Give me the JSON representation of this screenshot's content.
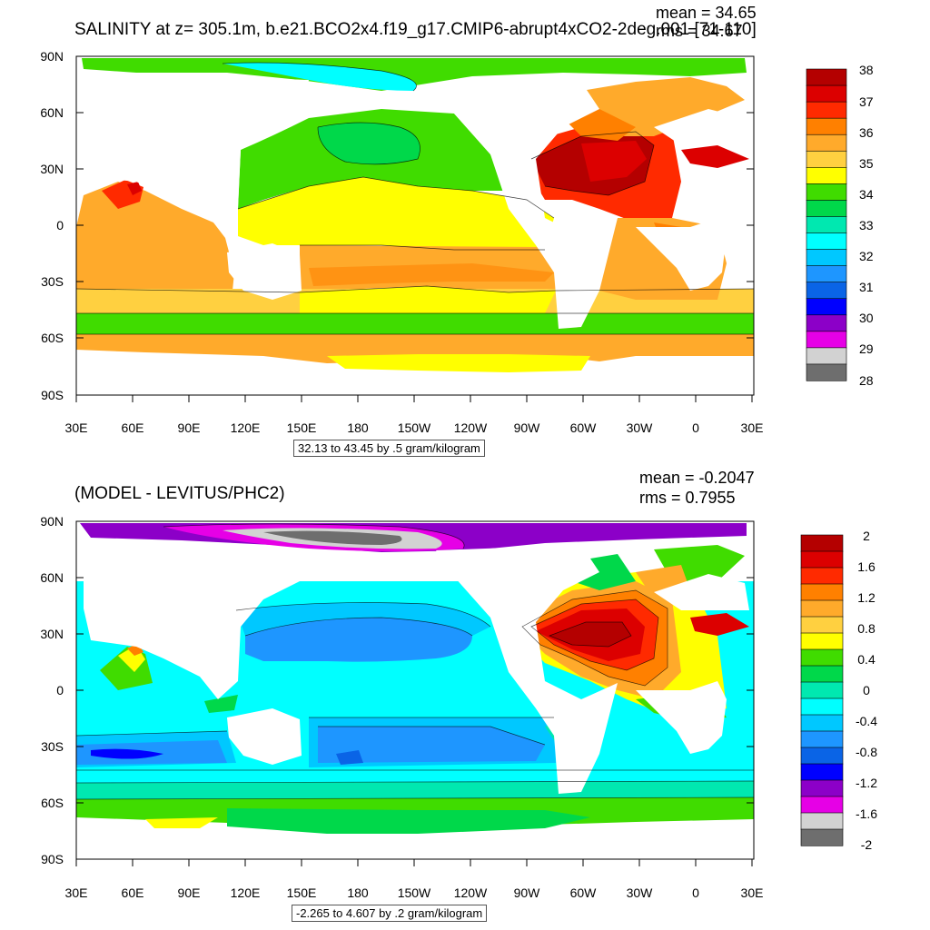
{
  "panel_top": {
    "title": "SALINITY at z= 305.1m, b.e21.BCO2x4.f19_g17.CMIP6-abrupt4xCO2-2deg.001 [71-110]",
    "mean_label": "mean = 34.65",
    "rms_label": "rms = 34.67",
    "info": "32.13 to 43.45 by .5 gram/kilogram",
    "colorbar": {
      "labels": [
        "38",
        "37",
        "36",
        "35",
        "34",
        "33",
        "32",
        "31",
        "30",
        "29",
        "28"
      ],
      "colors": [
        "#b40000",
        "#dc0000",
        "#ff2a00",
        "#ff8000",
        "#ffaa2b",
        "#ffd040",
        "#ffff00",
        "#40dc00",
        "#00d84a",
        "#00e8b0",
        "#00ffff",
        "#00c8ff",
        "#1e96ff",
        "#0a64e6",
        "#0000ff",
        "#8c00c8",
        "#e600e6",
        "#d2d2d2",
        "#6e6e6e"
      ]
    }
  },
  "panel_bottom": {
    "title": "(MODEL - LEVITUS/PHC2)",
    "mean_label": "mean = -0.2047",
    "rms_label": "rms = 0.7955",
    "info": "-2.265 to 4.607 by .2 gram/kilogram",
    "colorbar": {
      "labels": [
        "2",
        "1.6",
        "1.2",
        "0.8",
        "0.4",
        "0",
        "-0.4",
        "-0.8",
        "-1.2",
        "-1.6",
        "-2"
      ],
      "colors": [
        "#b40000",
        "#dc0000",
        "#ff2a00",
        "#ff8000",
        "#ffaa2b",
        "#ffd040",
        "#ffff00",
        "#40dc00",
        "#00d84a",
        "#00e8b0",
        "#00ffff",
        "#00c8ff",
        "#1e96ff",
        "#0a64e6",
        "#0000ff",
        "#8c00c8",
        "#e600e6",
        "#d2d2d2",
        "#6e6e6e"
      ]
    }
  },
  "axes": {
    "lat_labels": [
      "90N",
      "60N",
      "30N",
      "0",
      "30S",
      "60S",
      "90S"
    ],
    "lon_labels": [
      "30E",
      "60E",
      "90E",
      "120E",
      "150E",
      "180",
      "150W",
      "120W",
      "90W",
      "60W",
      "30W",
      "0",
      "30E"
    ]
  }
}
